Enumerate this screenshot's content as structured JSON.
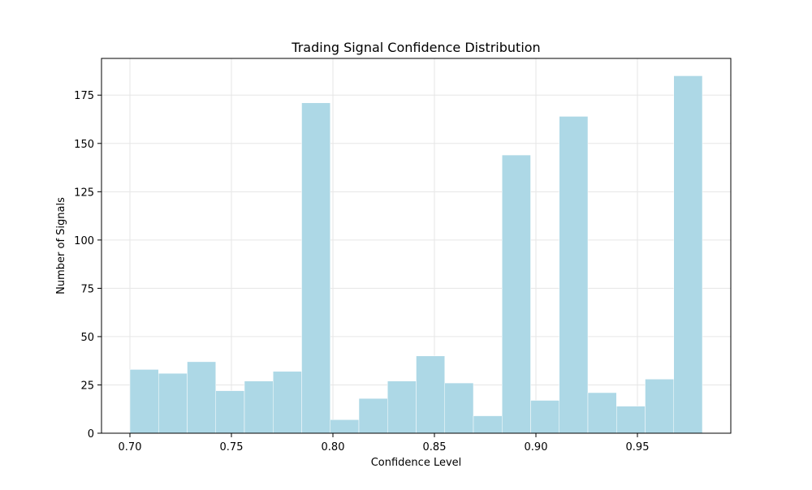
{
  "chart_data": {
    "type": "bar",
    "title": "Trading Signal Confidence Distribution",
    "xlabel": "Confidence Level",
    "ylabel": "Number of Signals",
    "xlim": [
      0.686,
      0.996
    ],
    "ylim": [
      0,
      194
    ],
    "xticks": [
      {
        "value": 0.7,
        "label": "0.70"
      },
      {
        "value": 0.75,
        "label": "0.75"
      },
      {
        "value": 0.8,
        "label": "0.80"
      },
      {
        "value": 0.85,
        "label": "0.85"
      },
      {
        "value": 0.9,
        "label": "0.90"
      },
      {
        "value": 0.95,
        "label": "0.95"
      }
    ],
    "yticks": [
      {
        "value": 0,
        "label": "0"
      },
      {
        "value": 25,
        "label": "25"
      },
      {
        "value": 50,
        "label": "50"
      },
      {
        "value": 75,
        "label": "75"
      },
      {
        "value": 100,
        "label": "100"
      },
      {
        "value": 125,
        "label": "125"
      },
      {
        "value": 150,
        "label": "150"
      },
      {
        "value": 175,
        "label": "175"
      }
    ],
    "bin_edges": [
      0.7,
      0.7141,
      0.7282,
      0.7423,
      0.7564,
      0.7705,
      0.7846,
      0.7987,
      0.8128,
      0.8269,
      0.841,
      0.8551,
      0.8692,
      0.8833,
      0.8974,
      0.9115,
      0.9256,
      0.9397,
      0.9538,
      0.9679,
      0.982
    ],
    "values": [
      33,
      31,
      37,
      22,
      27,
      32,
      171,
      7,
      18,
      27,
      40,
      26,
      9,
      144,
      17,
      164,
      21,
      14,
      28,
      185
    ],
    "bar_color": "#add8e6",
    "grid": true
  }
}
